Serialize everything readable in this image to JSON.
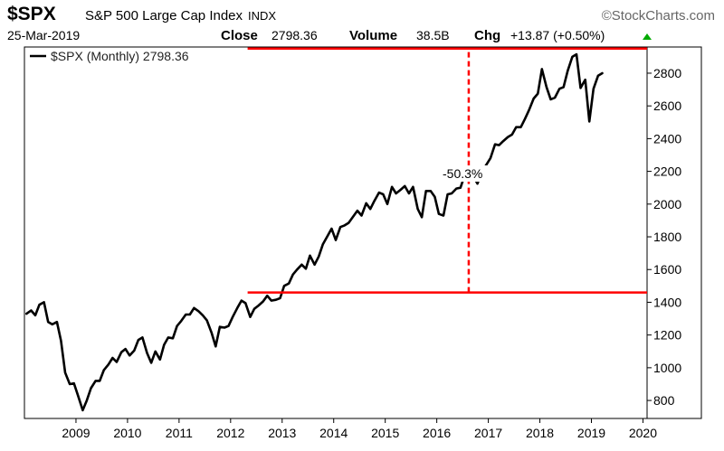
{
  "header": {
    "symbol": "$SPX",
    "name": "S&P 500 Large Cap Index",
    "exchange": "INDX",
    "brand": "©StockCharts.com",
    "date": "25-Mar-2019",
    "close_label": "Close",
    "close_value": "2798.36",
    "volume_label": "Volume",
    "volume_value": "38.5B",
    "chg_label": "Chg",
    "chg_value": "+13.87 (+0.50%)",
    "chg_color": "#00aa00"
  },
  "legend": {
    "text": "$SPX (Monthly) 2798.36"
  },
  "annotation": {
    "text": "-50.3%",
    "color": "#ff0000"
  },
  "chart_data": {
    "type": "line",
    "title": "$SPX (Monthly) 2798.36",
    "xlabel": "",
    "ylabel": "",
    "xlim": [
      2008.0,
      2020.08
    ],
    "ylim": [
      690,
      2960
    ],
    "x_ticks": [
      2009,
      2010,
      2011,
      2012,
      2013,
      2014,
      2015,
      2016,
      2017,
      2018,
      2019,
      2020
    ],
    "x_tick_labels": [
      "2009",
      "2010",
      "2011",
      "2012",
      "2013",
      "2014",
      "2015",
      "2016",
      "2017",
      "2018",
      "2019",
      "2020"
    ],
    "y_ticks": [
      800,
      1000,
      1200,
      1400,
      1600,
      1800,
      2000,
      2200,
      2400,
      2600,
      2800
    ],
    "y_tick_labels": [
      "800",
      "1000",
      "1200",
      "1400",
      "1600",
      "1800",
      "2000",
      "2200",
      "2400",
      "2600",
      "2800"
    ],
    "grid": false,
    "legend_position": "top-left",
    "line_color": "#000000",
    "series": [
      {
        "name": "$SPX (Monthly)",
        "x": [
          2008.04,
          2008.13,
          2008.21,
          2008.29,
          2008.38,
          2008.46,
          2008.54,
          2008.63,
          2008.71,
          2008.79,
          2008.88,
          2008.96,
          2009.04,
          2009.13,
          2009.21,
          2009.29,
          2009.38,
          2009.46,
          2009.54,
          2009.63,
          2009.71,
          2009.79,
          2009.88,
          2009.96,
          2010.04,
          2010.13,
          2010.21,
          2010.29,
          2010.38,
          2010.46,
          2010.54,
          2010.63,
          2010.71,
          2010.79,
          2010.88,
          2010.96,
          2011.04,
          2011.13,
          2011.21,
          2011.29,
          2011.38,
          2011.46,
          2011.54,
          2011.63,
          2011.71,
          2011.79,
          2011.88,
          2011.96,
          2012.04,
          2012.13,
          2012.21,
          2012.29,
          2012.38,
          2012.46,
          2012.54,
          2012.63,
          2012.71,
          2012.79,
          2012.88,
          2012.96,
          2013.04,
          2013.13,
          2013.21,
          2013.29,
          2013.38,
          2013.46,
          2013.54,
          2013.63,
          2013.71,
          2013.79,
          2013.88,
          2013.96,
          2014.04,
          2014.13,
          2014.21,
          2014.29,
          2014.38,
          2014.46,
          2014.54,
          2014.63,
          2014.71,
          2014.79,
          2014.88,
          2014.96,
          2015.04,
          2015.13,
          2015.21,
          2015.29,
          2015.38,
          2015.46,
          2015.54,
          2015.63,
          2015.71,
          2015.79,
          2015.88,
          2015.96,
          2016.04,
          2016.13,
          2016.21,
          2016.29,
          2016.38,
          2016.46,
          2016.54,
          2016.63,
          2016.71,
          2016.79,
          2016.88,
          2016.96,
          2017.04,
          2017.13,
          2017.21,
          2017.29,
          2017.38,
          2017.46,
          2017.54,
          2017.63,
          2017.71,
          2017.79,
          2017.88,
          2017.96,
          2018.04,
          2018.13,
          2018.21,
          2018.29,
          2018.38,
          2018.46,
          2018.54,
          2018.63,
          2018.71,
          2018.79,
          2018.88,
          2018.96,
          2019.04,
          2019.13,
          2019.21
        ],
        "values": [
          1330,
          1350,
          1320,
          1385,
          1400,
          1280,
          1265,
          1280,
          1165,
          970,
          900,
          905,
          830,
          740,
          800,
          875,
          920,
          920,
          985,
          1020,
          1060,
          1035,
          1095,
          1115,
          1075,
          1105,
          1170,
          1185,
          1090,
          1030,
          1100,
          1050,
          1140,
          1185,
          1180,
          1255,
          1285,
          1325,
          1325,
          1365,
          1345,
          1320,
          1290,
          1215,
          1130,
          1250,
          1245,
          1255,
          1310,
          1365,
          1410,
          1395,
          1310,
          1360,
          1380,
          1405,
          1440,
          1410,
          1415,
          1425,
          1500,
          1515,
          1570,
          1600,
          1630,
          1605,
          1685,
          1630,
          1680,
          1755,
          1805,
          1850,
          1780,
          1860,
          1870,
          1885,
          1925,
          1960,
          1930,
          2005,
          1970,
          2020,
          2070,
          2060,
          2000,
          2105,
          2065,
          2085,
          2110,
          2065,
          2105,
          1970,
          1920,
          2080,
          2080,
          2045,
          1940,
          1930,
          2060,
          2065,
          2095,
          2100,
          2175,
          2170,
          2170,
          2125,
          2200,
          2240,
          2280,
          2365,
          2360,
          2385,
          2410,
          2425,
          2470,
          2470,
          2520,
          2575,
          2645,
          2675,
          2825,
          2715,
          2640,
          2650,
          2705,
          2715,
          2815,
          2900,
          2915,
          2710,
          2760,
          2505,
          2705,
          2785,
          2800
        ]
      }
    ],
    "reference_lines": [
      {
        "kind": "horizontal",
        "y": 2950,
        "color": "#ff0000",
        "x_start": 2012.33,
        "x_end": 2020.08,
        "style": "solid"
      },
      {
        "kind": "horizontal",
        "y": 1460,
        "color": "#ff0000",
        "x_start": 2012.33,
        "x_end": 2020.08,
        "style": "solid"
      },
      {
        "kind": "vertical",
        "x": 2016.62,
        "y_start": 1460,
        "y_end": 2950,
        "color": "#ff0000",
        "style": "dashed"
      }
    ]
  }
}
